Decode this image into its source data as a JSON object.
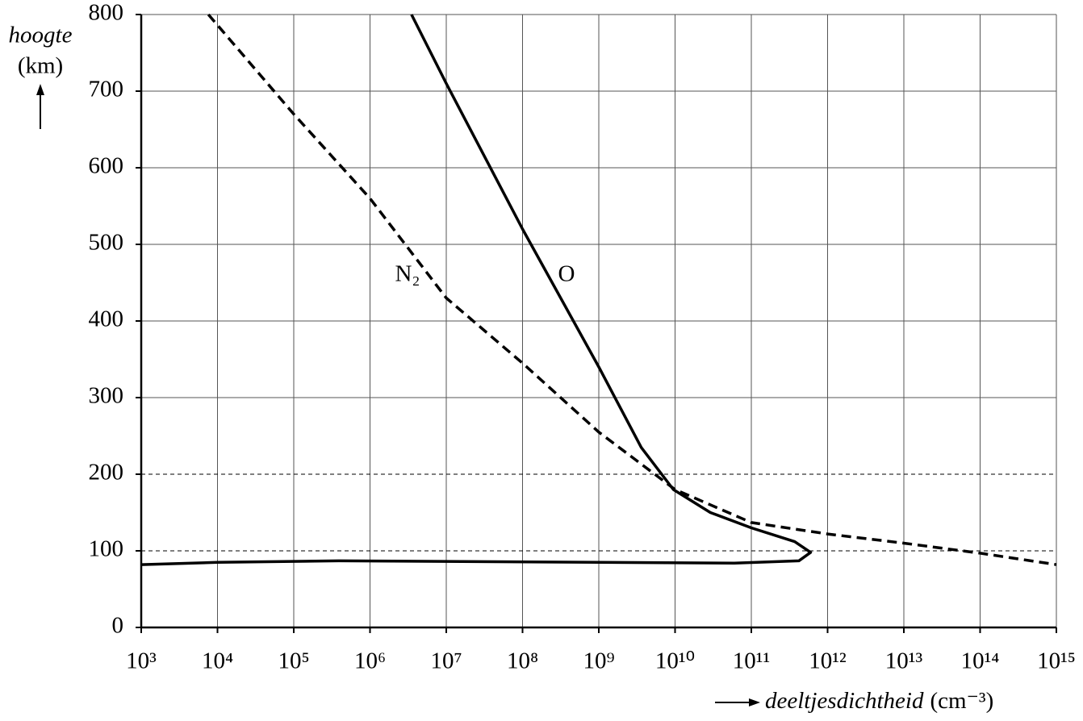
{
  "chart_data": {
    "type": "line",
    "y_label": "hoogte",
    "y_unit": "(km)",
    "x_label": "deeltjesdichtheid",
    "x_unit": "(cm⁻³)",
    "xscale": "log",
    "xlim": [
      1000.0,
      1000000000000000.0
    ],
    "xticks": [
      {
        "value": 1000.0,
        "label": "10³"
      },
      {
        "value": 10000.0,
        "label": "10⁴"
      },
      {
        "value": 100000.0,
        "label": "10⁵"
      },
      {
        "value": 1000000.0,
        "label": "10⁶"
      },
      {
        "value": 10000000.0,
        "label": "10⁷"
      },
      {
        "value": 100000000.0,
        "label": "10⁸"
      },
      {
        "value": 1000000000.0,
        "label": "10⁹"
      },
      {
        "value": 10000000000.0,
        "label": "10¹⁰"
      },
      {
        "value": 100000000000.0,
        "label": "10¹¹"
      },
      {
        "value": 1000000000000.0,
        "label": "10¹²"
      },
      {
        "value": 10000000000000.0,
        "label": "10¹³"
      },
      {
        "value": 100000000000000.0,
        "label": "10¹⁴"
      },
      {
        "value": 1000000000000000.0,
        "label": "10¹⁵"
      }
    ],
    "ylim": [
      0,
      800
    ],
    "yticks": [
      0,
      100,
      200,
      300,
      400,
      500,
      600,
      700,
      800
    ],
    "grid": true,
    "reference_lines": [
      100,
      200
    ],
    "series": [
      {
        "name": "O",
        "color": "#000000",
        "dashed": false,
        "x": [
          3500000.0,
          10000000.0,
          100000000.0,
          1000000000.0,
          3600000000.0,
          9500000000.0,
          29000000000.0,
          100000000000.0,
          370000000000.0,
          600000000000.0,
          420000000000.0,
          60000000000.0,
          1000000000.0,
          390000.0,
          10000.0,
          1000.0
        ],
        "values": [
          800,
          710,
          520,
          340,
          235,
          180,
          150,
          130,
          112,
          98,
          87,
          84,
          85,
          87,
          85,
          82
        ]
      },
      {
        "name": "N₂",
        "color": "#000000",
        "dashed": true,
        "x": [
          7600.0,
          100000.0,
          1000000.0,
          10000000.0,
          100000000.0,
          1000000000.0,
          10000000000.0,
          100000000000.0,
          1000000000000.0,
          10000000000000.0,
          100000000000000.0,
          1000000000000000.0
        ],
        "values": [
          800,
          670,
          560,
          430,
          345,
          255,
          180,
          137,
          122,
          110,
          97,
          82
        ]
      }
    ]
  }
}
